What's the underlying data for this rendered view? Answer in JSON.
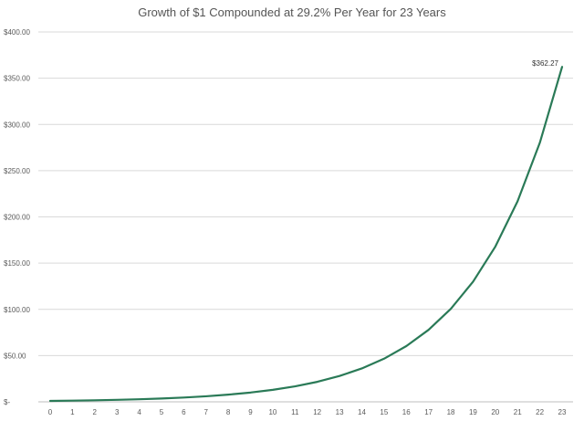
{
  "chart_data": {
    "type": "line",
    "title": "Growth of $1 Compounded at 29.2% Per Year for 23 Years",
    "xlabel": "",
    "ylabel": "",
    "x": [
      0,
      1,
      2,
      3,
      4,
      5,
      6,
      7,
      8,
      9,
      10,
      11,
      12,
      13,
      14,
      15,
      16,
      17,
      18,
      19,
      20,
      21,
      22,
      23
    ],
    "series": [
      {
        "values": [
          1.0,
          1.29,
          1.67,
          2.16,
          2.79,
          3.6,
          4.65,
          6.0,
          7.76,
          10.03,
          12.95,
          16.74,
          21.62,
          27.94,
          36.09,
          46.63,
          60.25,
          77.84,
          100.57,
          129.93,
          167.87,
          216.89,
          280.22,
          362.27
        ],
        "color": "#2a7a57"
      }
    ],
    "y_ticks": [
      "$-",
      "$50.00",
      "$100.00",
      "$150.00",
      "$200.00",
      "$250.00",
      "$300.00",
      "$350.00",
      "$400.00"
    ],
    "x_ticks": [
      "0",
      "1",
      "2",
      "3",
      "4",
      "5",
      "6",
      "7",
      "8",
      "9",
      "10",
      "11",
      "12",
      "13",
      "14",
      "15",
      "16",
      "17",
      "18",
      "19",
      "20",
      "21",
      "22",
      "23"
    ],
    "ylim": [
      0,
      400
    ],
    "xlim": [
      0,
      23
    ],
    "grid": "horizontal",
    "legend": "none",
    "annotations": [
      {
        "x": 23,
        "y": 362.27,
        "text": "$362.27"
      }
    ]
  }
}
